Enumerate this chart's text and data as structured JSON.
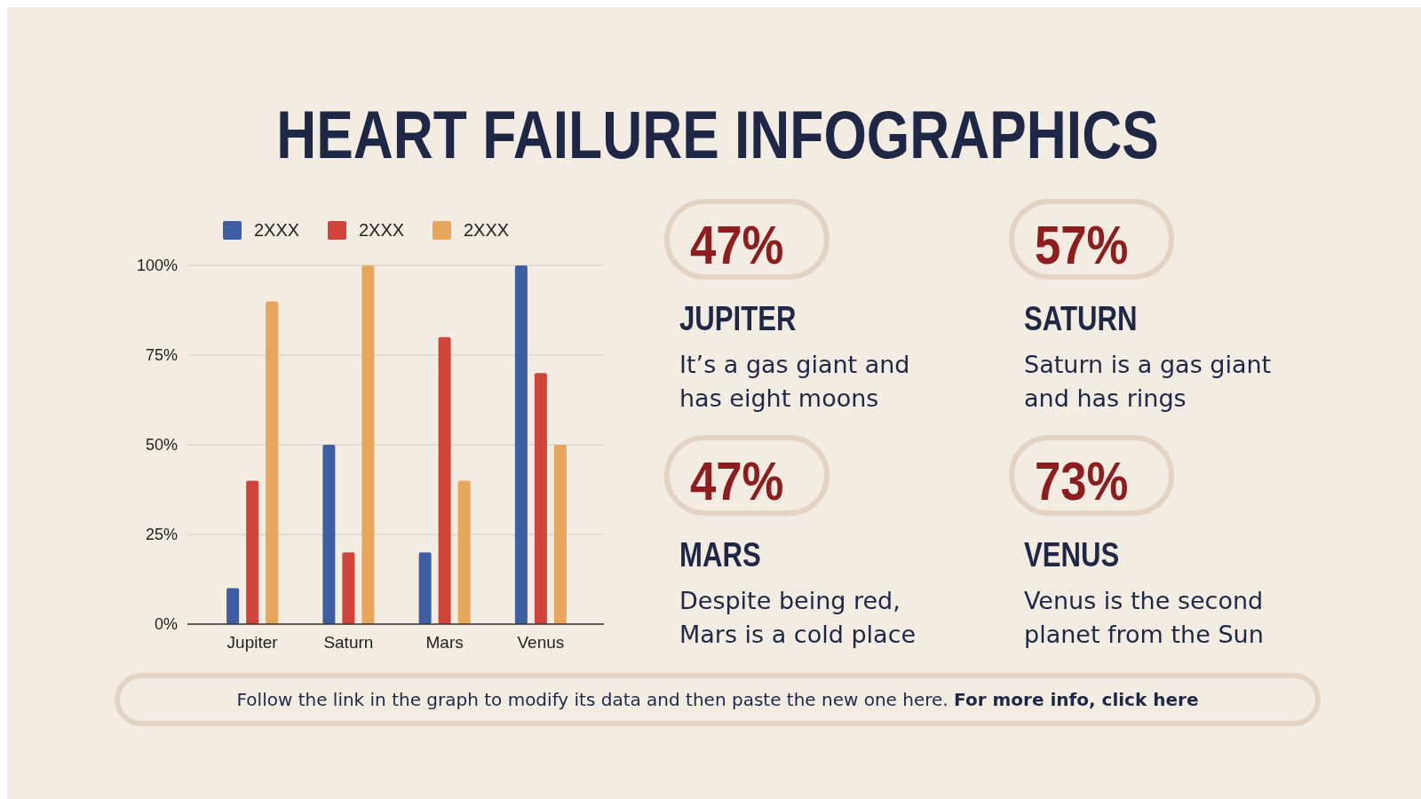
{
  "chart_data": [
    {
      "type": "bar",
      "title": "HEART FAILURE INFOGRAPHICS",
      "categories": [
        "Jupiter",
        "Saturn",
        "Mars",
        "Venus"
      ],
      "series": [
        {
          "name": "2XXX",
          "color": "#3d5ea3",
          "values": [
            10,
            50,
            20,
            100
          ]
        },
        {
          "name": "2XXX",
          "color": "#d0443a",
          "values": [
            40,
            20,
            80,
            70
          ]
        },
        {
          "name": "2XXX",
          "color": "#e8a55c",
          "values": [
            90,
            100,
            40,
            50
          ]
        }
      ],
      "ylim": [
        0,
        100
      ],
      "yticks": [
        {
          "value": 0,
          "label": "0%"
        },
        {
          "value": 25,
          "label": "25%"
        },
        {
          "value": 50,
          "label": "50%"
        },
        {
          "value": 75,
          "label": "75%"
        },
        {
          "value": 100,
          "label": "100%"
        }
      ],
      "grid": "y",
      "legend": "top"
    },
    {
      "type": "other",
      "annotations": [
        "47%",
        "JUPITER",
        "It’s a gas giant and has eight moons",
        "57%",
        "SATURN",
        "Saturn is a gas giant and has rings",
        "47%",
        "MARS",
        "Despite being red, Mars is a cold place",
        "73%",
        "VENUS",
        "Venus is the second planet from the Sun",
        "Follow the link in the graph to modify its data and then paste the new one here.",
        "For more info, click here"
      ]
    }
  ]
}
